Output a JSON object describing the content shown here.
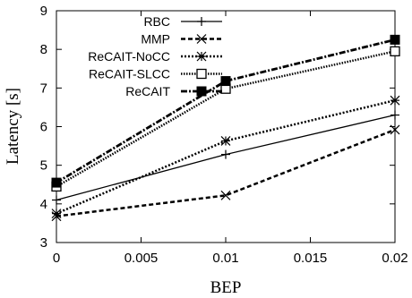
{
  "chart_data": {
    "type": "line",
    "title": "",
    "xlabel": "BEP",
    "ylabel": "Latency [s]",
    "x": [
      0,
      0.01,
      0.02
    ],
    "xlim": [
      0,
      0.02
    ],
    "ylim": [
      3,
      9
    ],
    "xticks": [
      "0",
      "0.005",
      "0.01",
      "0.015",
      "0.02"
    ],
    "yticks": [
      "3",
      "4",
      "5",
      "6",
      "7",
      "8",
      "9"
    ],
    "grid": false,
    "legend_position": "top-center",
    "series": [
      {
        "name": "RBC",
        "values": [
          4.1,
          5.28,
          6.3
        ],
        "marker": "plus",
        "dash": "solid",
        "width": 1.3
      },
      {
        "name": "MMP",
        "values": [
          3.68,
          4.22,
          5.92
        ],
        "marker": "cross",
        "dash": "dashed",
        "width": 2.5
      },
      {
        "name": "ReCAIT-NoCC",
        "values": [
          3.75,
          5.63,
          6.68
        ],
        "marker": "star",
        "dash": "dotted",
        "width": 2.5
      },
      {
        "name": "ReCAIT-SLCC",
        "values": [
          4.45,
          6.98,
          7.95
        ],
        "marker": "open-square",
        "dash": "dense-dotted",
        "width": 2.5
      },
      {
        "name": "ReCAIT",
        "values": [
          4.55,
          7.18,
          8.25
        ],
        "marker": "filled-square",
        "dash": "dash-dot",
        "width": 2.8
      }
    ]
  }
}
